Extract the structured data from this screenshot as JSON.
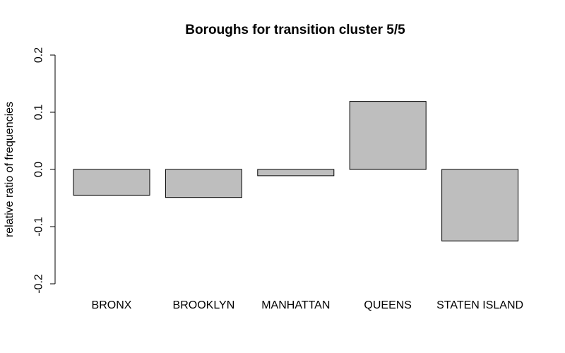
{
  "chart_data": {
    "type": "bar",
    "title": "Boroughs for transition cluster 5/5",
    "xlabel": "",
    "ylabel": "relative ratio of frequencies",
    "categories": [
      "BRONX",
      "BROOKLYN",
      "MANHATTAN",
      "QUEENS",
      "STATEN ISLAND"
    ],
    "values": [
      -0.045,
      -0.049,
      -0.011,
      0.119,
      -0.125
    ],
    "ylim": [
      -0.2,
      0.2
    ],
    "yticks": [
      "-0.2",
      "-0.1",
      "0.0",
      "0.1",
      "0.2"
    ],
    "grid": false,
    "legend": "none",
    "bar_color": "#bebebe",
    "bar_border_color": "#000000"
  }
}
